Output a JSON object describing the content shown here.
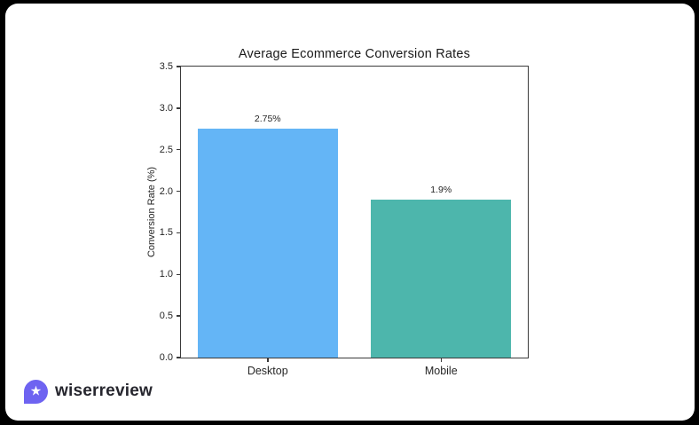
{
  "chart_data": {
    "type": "bar",
    "title": "Average Ecommerce Conversion Rates",
    "xlabel": "",
    "ylabel": "Conversion Rate (%)",
    "categories": [
      "Desktop",
      "Mobile"
    ],
    "values": [
      2.75,
      1.9
    ],
    "value_labels": [
      "2.75%",
      "1.9%"
    ],
    "bar_colors": [
      "#64b5f6",
      "#4db6ac"
    ],
    "ylim": [
      0,
      3.5
    ],
    "yticks": [
      0.0,
      0.5,
      1.0,
      1.5,
      2.0,
      2.5,
      3.0,
      3.5
    ],
    "ytick_labels": [
      "0.0",
      "0.5",
      "1.0",
      "1.5",
      "2.0",
      "2.5",
      "3.0",
      "3.5"
    ],
    "grid": false,
    "legend": "none",
    "frame": "box"
  },
  "branding": {
    "logo_text": "wiserreview",
    "logo_icon_color": "#6e63f1",
    "star_glyph": "★"
  },
  "colors": {
    "page_background": "#000000",
    "card_background": "#ffffff",
    "axis": "#3a3a3a",
    "text": "#262626",
    "bar_desktop": "#64b5f6",
    "bar_mobile": "#4db6ac",
    "logo_purple": "#6e63f1"
  }
}
